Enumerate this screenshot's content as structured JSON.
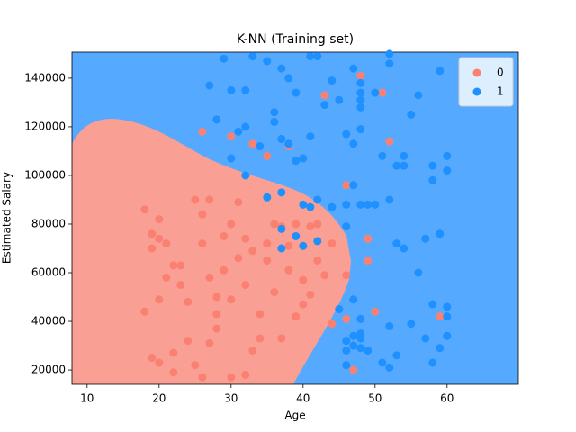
{
  "chart_data": {
    "type": "scatter",
    "title": "K-NN (Training set)",
    "x_label": "Age",
    "y_label": "Estimated Salary",
    "xlim": [
      7.9,
      69.9
    ],
    "ylim": [
      14100,
      150700
    ],
    "xticks": [
      10,
      20,
      30,
      40,
      50,
      60
    ],
    "yticks": [
      20000,
      40000,
      60000,
      80000,
      100000,
      120000,
      140000
    ],
    "legend": "upper right",
    "series": [
      {
        "name": "0",
        "color": "#fa8072",
        "x": [
          18,
          19,
          20,
          20,
          21,
          19,
          22,
          20,
          18,
          23,
          21,
          19,
          20,
          22,
          24,
          25,
          26,
          27,
          28,
          29,
          30,
          26,
          25,
          27,
          31,
          30,
          32,
          33,
          34,
          35,
          35,
          36,
          37,
          38,
          39,
          40,
          41,
          42,
          43,
          44,
          46,
          46,
          46,
          26,
          27,
          28,
          29,
          31,
          32,
          33,
          34,
          36,
          38,
          39,
          40,
          42,
          26,
          30,
          33,
          35,
          38,
          43,
          48,
          51,
          52,
          46,
          49,
          49,
          50,
          59,
          47,
          23,
          24,
          22,
          28,
          30,
          32,
          37,
          41,
          44
        ],
        "values": [
          86000,
          76000,
          82000,
          74000,
          72000,
          70000,
          63000,
          49000,
          44000,
          55000,
          58000,
          25000,
          23000,
          27000,
          32000,
          22000,
          17000,
          31000,
          43000,
          75000,
          80000,
          84000,
          90000,
          90000,
          89000,
          17000,
          18000,
          28000,
          43000,
          65000,
          72000,
          52000,
          33000,
          61000,
          42000,
          57000,
          51000,
          80000,
          59000,
          39000,
          59000,
          41000,
          22000,
          72000,
          58000,
          50000,
          61000,
          66000,
          55000,
          69000,
          33000,
          80000,
          71000,
          80000,
          47000,
          65000,
          118000,
          116000,
          113000,
          108000,
          112000,
          133000,
          141000,
          134000,
          114000,
          96000,
          74000,
          65000,
          44000,
          42000,
          20000,
          63000,
          48000,
          19000,
          37000,
          49000,
          74000,
          79000,
          79000,
          72000
        ]
      },
      {
        "name": "1",
        "color": "#1e90ff",
        "x": [
          29,
          27,
          30,
          32,
          33,
          35,
          37,
          39,
          38,
          41,
          42,
          44,
          45,
          43,
          47,
          48,
          48,
          48,
          48,
          48,
          50,
          52,
          52,
          55,
          56,
          59,
          28,
          30,
          31,
          32,
          32,
          34,
          36,
          36,
          37,
          38,
          39,
          40,
          41,
          46,
          47,
          51,
          53,
          54,
          54,
          58,
          58,
          60,
          60,
          35,
          37,
          40,
          42,
          41,
          46,
          47,
          48,
          49,
          50,
          46,
          37,
          37,
          39,
          40,
          42,
          53,
          54,
          57,
          59,
          45,
          47,
          48,
          52,
          55,
          58,
          60,
          60,
          60,
          59,
          58,
          57,
          53,
          51,
          52,
          46,
          46,
          47,
          47,
          48,
          48,
          48,
          49,
          56,
          52,
          44,
          46
        ],
        "values": [
          148000,
          137000,
          135000,
          135000,
          149000,
          147000,
          144000,
          134000,
          140000,
          149000,
          149000,
          139000,
          131000,
          129000,
          144000,
          138000,
          134000,
          131000,
          128000,
          119000,
          134000,
          150000,
          146000,
          125000,
          133000,
          143000,
          123000,
          107000,
          118000,
          120000,
          100000,
          112000,
          126000,
          122000,
          115000,
          113000,
          106000,
          107000,
          116000,
          117000,
          113000,
          108000,
          104000,
          108000,
          104000,
          104000,
          98000,
          108000,
          102000,
          91000,
          93000,
          88000,
          90000,
          87000,
          88000,
          96000,
          88000,
          88000,
          88000,
          79000,
          78000,
          70000,
          75000,
          71000,
          73000,
          72000,
          70000,
          74000,
          76000,
          45000,
          49000,
          41000,
          38000,
          39000,
          47000,
          46000,
          42000,
          34000,
          29000,
          23000,
          33000,
          26000,
          23000,
          21000,
          32000,
          28000,
          30000,
          34000,
          35000,
          29000,
          33000,
          28000,
          60000,
          90000,
          87000,
          22000
        ]
      }
    ]
  }
}
